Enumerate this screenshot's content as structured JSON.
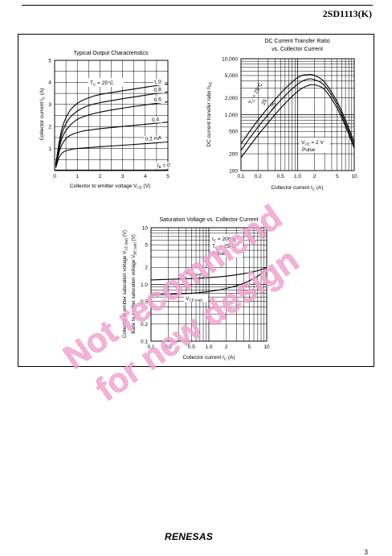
{
  "header": {
    "part_number": "2SD1113(K)"
  },
  "footer": {
    "logo": "RENESAS",
    "page": "3"
  },
  "watermark": {
    "line1": "Not recommend",
    "line2": "for new design"
  },
  "chart_data": [
    {
      "id": "output",
      "type": "line",
      "title": "Typical Output Characteristics",
      "xlabel": "Collector to emitter voltage  VCE  (V)",
      "ylabel": "Collector current  IC  (A)",
      "condition": "TC = 25°C",
      "xlim": [
        0,
        5
      ],
      "ylim": [
        0,
        5
      ],
      "xticks": [
        "0",
        "1",
        "2",
        "3",
        "4",
        "5"
      ],
      "yticks": [
        "1",
        "2",
        "3",
        "4",
        "5"
      ],
      "grid": true,
      "series": [
        {
          "name": "1.0",
          "x": [
            0.05,
            0.3,
            0.6,
            1.0,
            1.5,
            2,
            3,
            4,
            5
          ],
          "y": [
            0.3,
            1.8,
            2.6,
            3.05,
            3.3,
            3.45,
            3.62,
            3.78,
            3.93
          ]
        },
        {
          "name": "0.8",
          "x": [
            0.05,
            0.3,
            0.6,
            1.0,
            1.5,
            2,
            3,
            4,
            5
          ],
          "y": [
            0.28,
            1.6,
            2.3,
            2.7,
            2.95,
            3.08,
            3.26,
            3.42,
            3.57
          ]
        },
        {
          "name": "0.6",
          "x": [
            0.05,
            0.3,
            0.6,
            1.0,
            1.5,
            2,
            3,
            4,
            5
          ],
          "y": [
            0.25,
            1.4,
            1.95,
            2.32,
            2.52,
            2.65,
            2.83,
            2.98,
            3.12
          ]
        },
        {
          "name": "0.4",
          "x": [
            0.05,
            0.25,
            0.5,
            0.8,
            1.2,
            2,
            3,
            4,
            5
          ],
          "y": [
            0.2,
            1.0,
            1.45,
            1.65,
            1.78,
            1.9,
            2.0,
            2.1,
            2.2
          ]
        },
        {
          "name": "0.2 mA",
          "x": [
            0.05,
            0.2,
            0.4,
            0.7,
            1.0,
            2,
            3,
            4,
            5
          ],
          "y": [
            0.12,
            0.6,
            0.85,
            0.95,
            1.0,
            1.08,
            1.15,
            1.22,
            1.3
          ]
        },
        {
          "name": "IB = 0",
          "x": [
            0,
            1,
            2,
            3,
            4,
            5
          ],
          "y": [
            0.02,
            0.02,
            0.02,
            0.02,
            0.02,
            0.03
          ]
        }
      ]
    },
    {
      "id": "hfe",
      "type": "line",
      "title": "DC Current Transfer Ratio vs. Collector Current",
      "xlabel": "Collector current  IC  (A)",
      "ylabel": "DC current transfer ratio  hFE",
      "condition": "VCE = 2 V  Pulse",
      "xscale": "log",
      "yscale": "log",
      "xlim": [
        0.1,
        10
      ],
      "ylim": [
        100,
        10000
      ],
      "xticks": [
        "0.1",
        "0.2",
        "0.5",
        "1.0",
        "2",
        "5",
        "10"
      ],
      "yticks": [
        "10,000",
        "5,000",
        "2,000",
        "1,000",
        "500",
        "200",
        "100"
      ],
      "grid": true,
      "series": [
        {
          "name": "TC = 75°C",
          "x": [
            0.1,
            0.2,
            0.5,
            1.0,
            1.5,
            2,
            3,
            5,
            7,
            10
          ],
          "y": [
            300,
            800,
            2400,
            4600,
            5200,
            5000,
            3800,
            1700,
            800,
            320
          ]
        },
        {
          "name": "25",
          "x": [
            0.1,
            0.2,
            0.5,
            1.0,
            1.5,
            2,
            3,
            5,
            7,
            10
          ],
          "y": [
            230,
            600,
            1800,
            3500,
            4300,
            4200,
            3300,
            1500,
            700,
            280
          ]
        },
        {
          "name": "–25",
          "x": [
            0.1,
            0.2,
            0.5,
            1.0,
            1.5,
            2,
            3,
            5,
            7,
            10
          ],
          "y": [
            170,
            430,
            1300,
            2600,
            3300,
            3400,
            2800,
            1300,
            620,
            250
          ]
        }
      ]
    },
    {
      "id": "sat",
      "type": "line",
      "title": "Saturation Voltage vs. Collector Current",
      "xlabel": "Collector current  IC  (A)",
      "ylabel": "Collector to emitter saturation voltage  VCE (sat)  (V)",
      "ylabel2": "Base to emitter saturation voltage  VBE (sat)  (V)",
      "condition": "IC = 200 IB  TC = 25°C  Pulse",
      "xscale": "log",
      "yscale": "log",
      "xlim": [
        0.1,
        10
      ],
      "ylim": [
        0.1,
        10
      ],
      "xticks": [
        "0.1",
        "0.2",
        "0.5",
        "1.0",
        "2",
        "5",
        "10"
      ],
      "yticks": [
        "10",
        "5",
        "2",
        "1.0",
        "0.5",
        "0.2",
        "0.1"
      ],
      "grid": true,
      "series": [
        {
          "name": "VBE (sat)",
          "x": [
            0.1,
            0.2,
            0.5,
            1,
            2,
            4,
            7,
            10
          ],
          "y": [
            1.2,
            1.23,
            1.27,
            1.32,
            1.4,
            1.55,
            1.75,
            2.0
          ]
        },
        {
          "name": "VCE (sat)",
          "x": [
            0.1,
            0.2,
            0.5,
            1,
            2,
            4,
            7,
            10
          ],
          "y": [
            0.65,
            0.67,
            0.7,
            0.75,
            0.85,
            1.05,
            1.4,
            1.9
          ]
        }
      ]
    }
  ]
}
